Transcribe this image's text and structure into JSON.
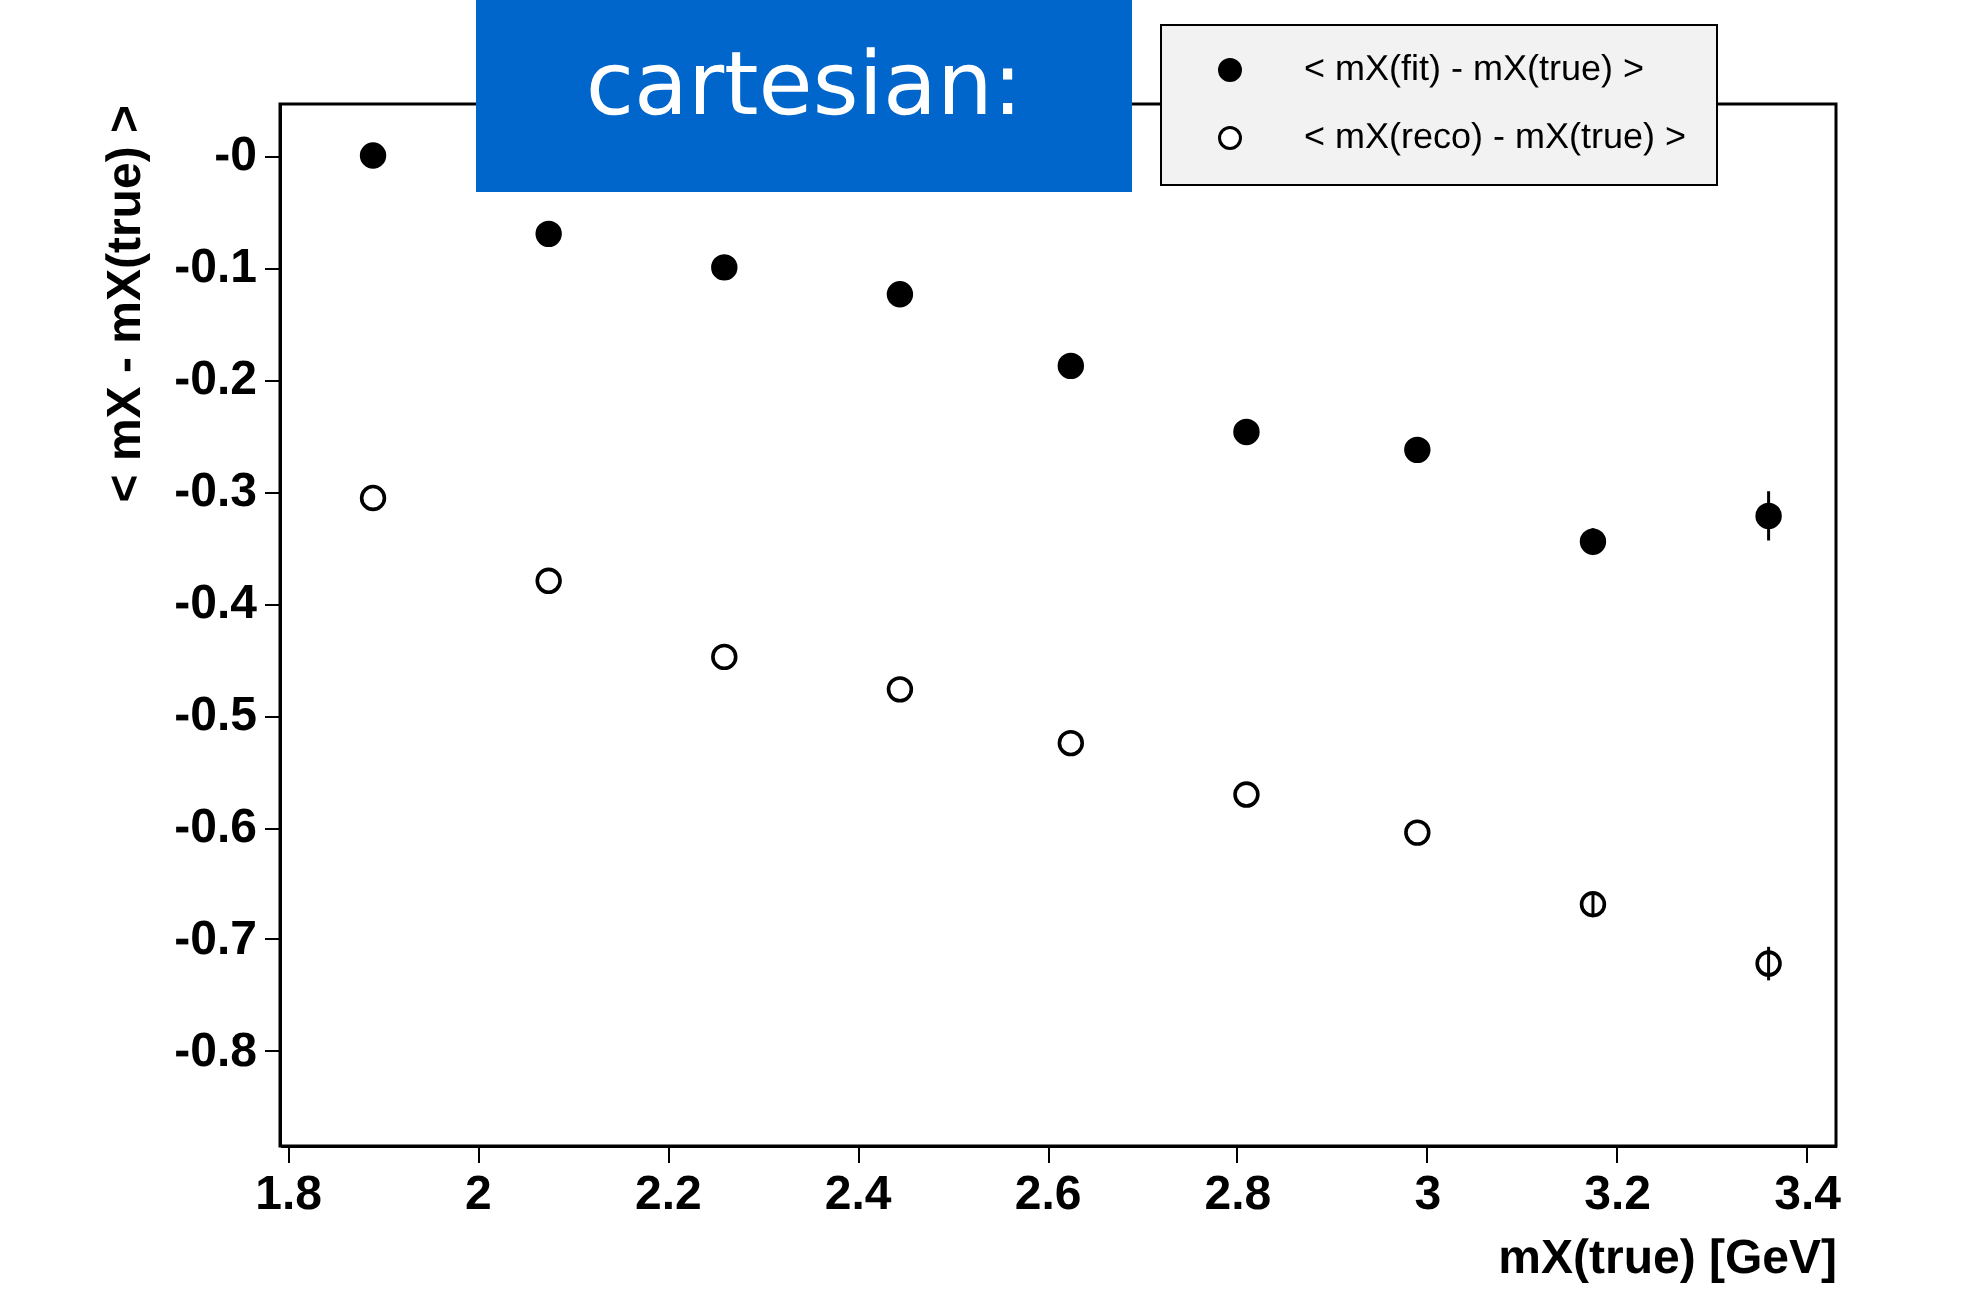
{
  "chart_data": {
    "type": "scatter",
    "xlabel": "mX(true) [GeV]",
    "ylabel": "< mX - mX(true) >",
    "annotations": [
      "cartesian:"
    ],
    "x": [
      1.89,
      2.075,
      2.26,
      2.445,
      2.625,
      2.81,
      2.99,
      3.175,
      3.36
    ],
    "series": [
      {
        "name": "< mX(fit) - mX(true) >",
        "color": "#000000",
        "marker": "circle",
        "values": [
          0.0,
          -0.07,
          -0.1,
          -0.124,
          -0.188,
          -0.247,
          -0.263,
          -0.345,
          -0.322
        ],
        "errors": [
          null,
          null,
          null,
          null,
          null,
          null,
          0.007,
          0.012,
          0.022
        ]
      },
      {
        "name": "< mX(reco) - mX(true) >",
        "color": "#000000",
        "marker": "open circle",
        "values": [
          -0.306,
          -0.38,
          -0.448,
          -0.477,
          -0.525,
          -0.571,
          -0.605,
          -0.669,
          -0.722
        ],
        "errors": [
          null,
          null,
          null,
          null,
          null,
          null,
          null,
          0.01,
          0.015
        ]
      }
    ],
    "xlim": [
      1.792,
      3.431
    ],
    "ylim": [
      -0.885,
      0.046
    ],
    "xticks": [
      1.8,
      2,
      2.2,
      2.4,
      2.6,
      2.8,
      3,
      3.2,
      3.4
    ],
    "yticks": [
      {
        "value": 0,
        "label": "-0"
      },
      -0.1,
      -0.2,
      -0.3,
      -0.4,
      -0.5,
      -0.6,
      -0.7,
      -0.8
    ],
    "grid": false,
    "legend": "top right"
  }
}
